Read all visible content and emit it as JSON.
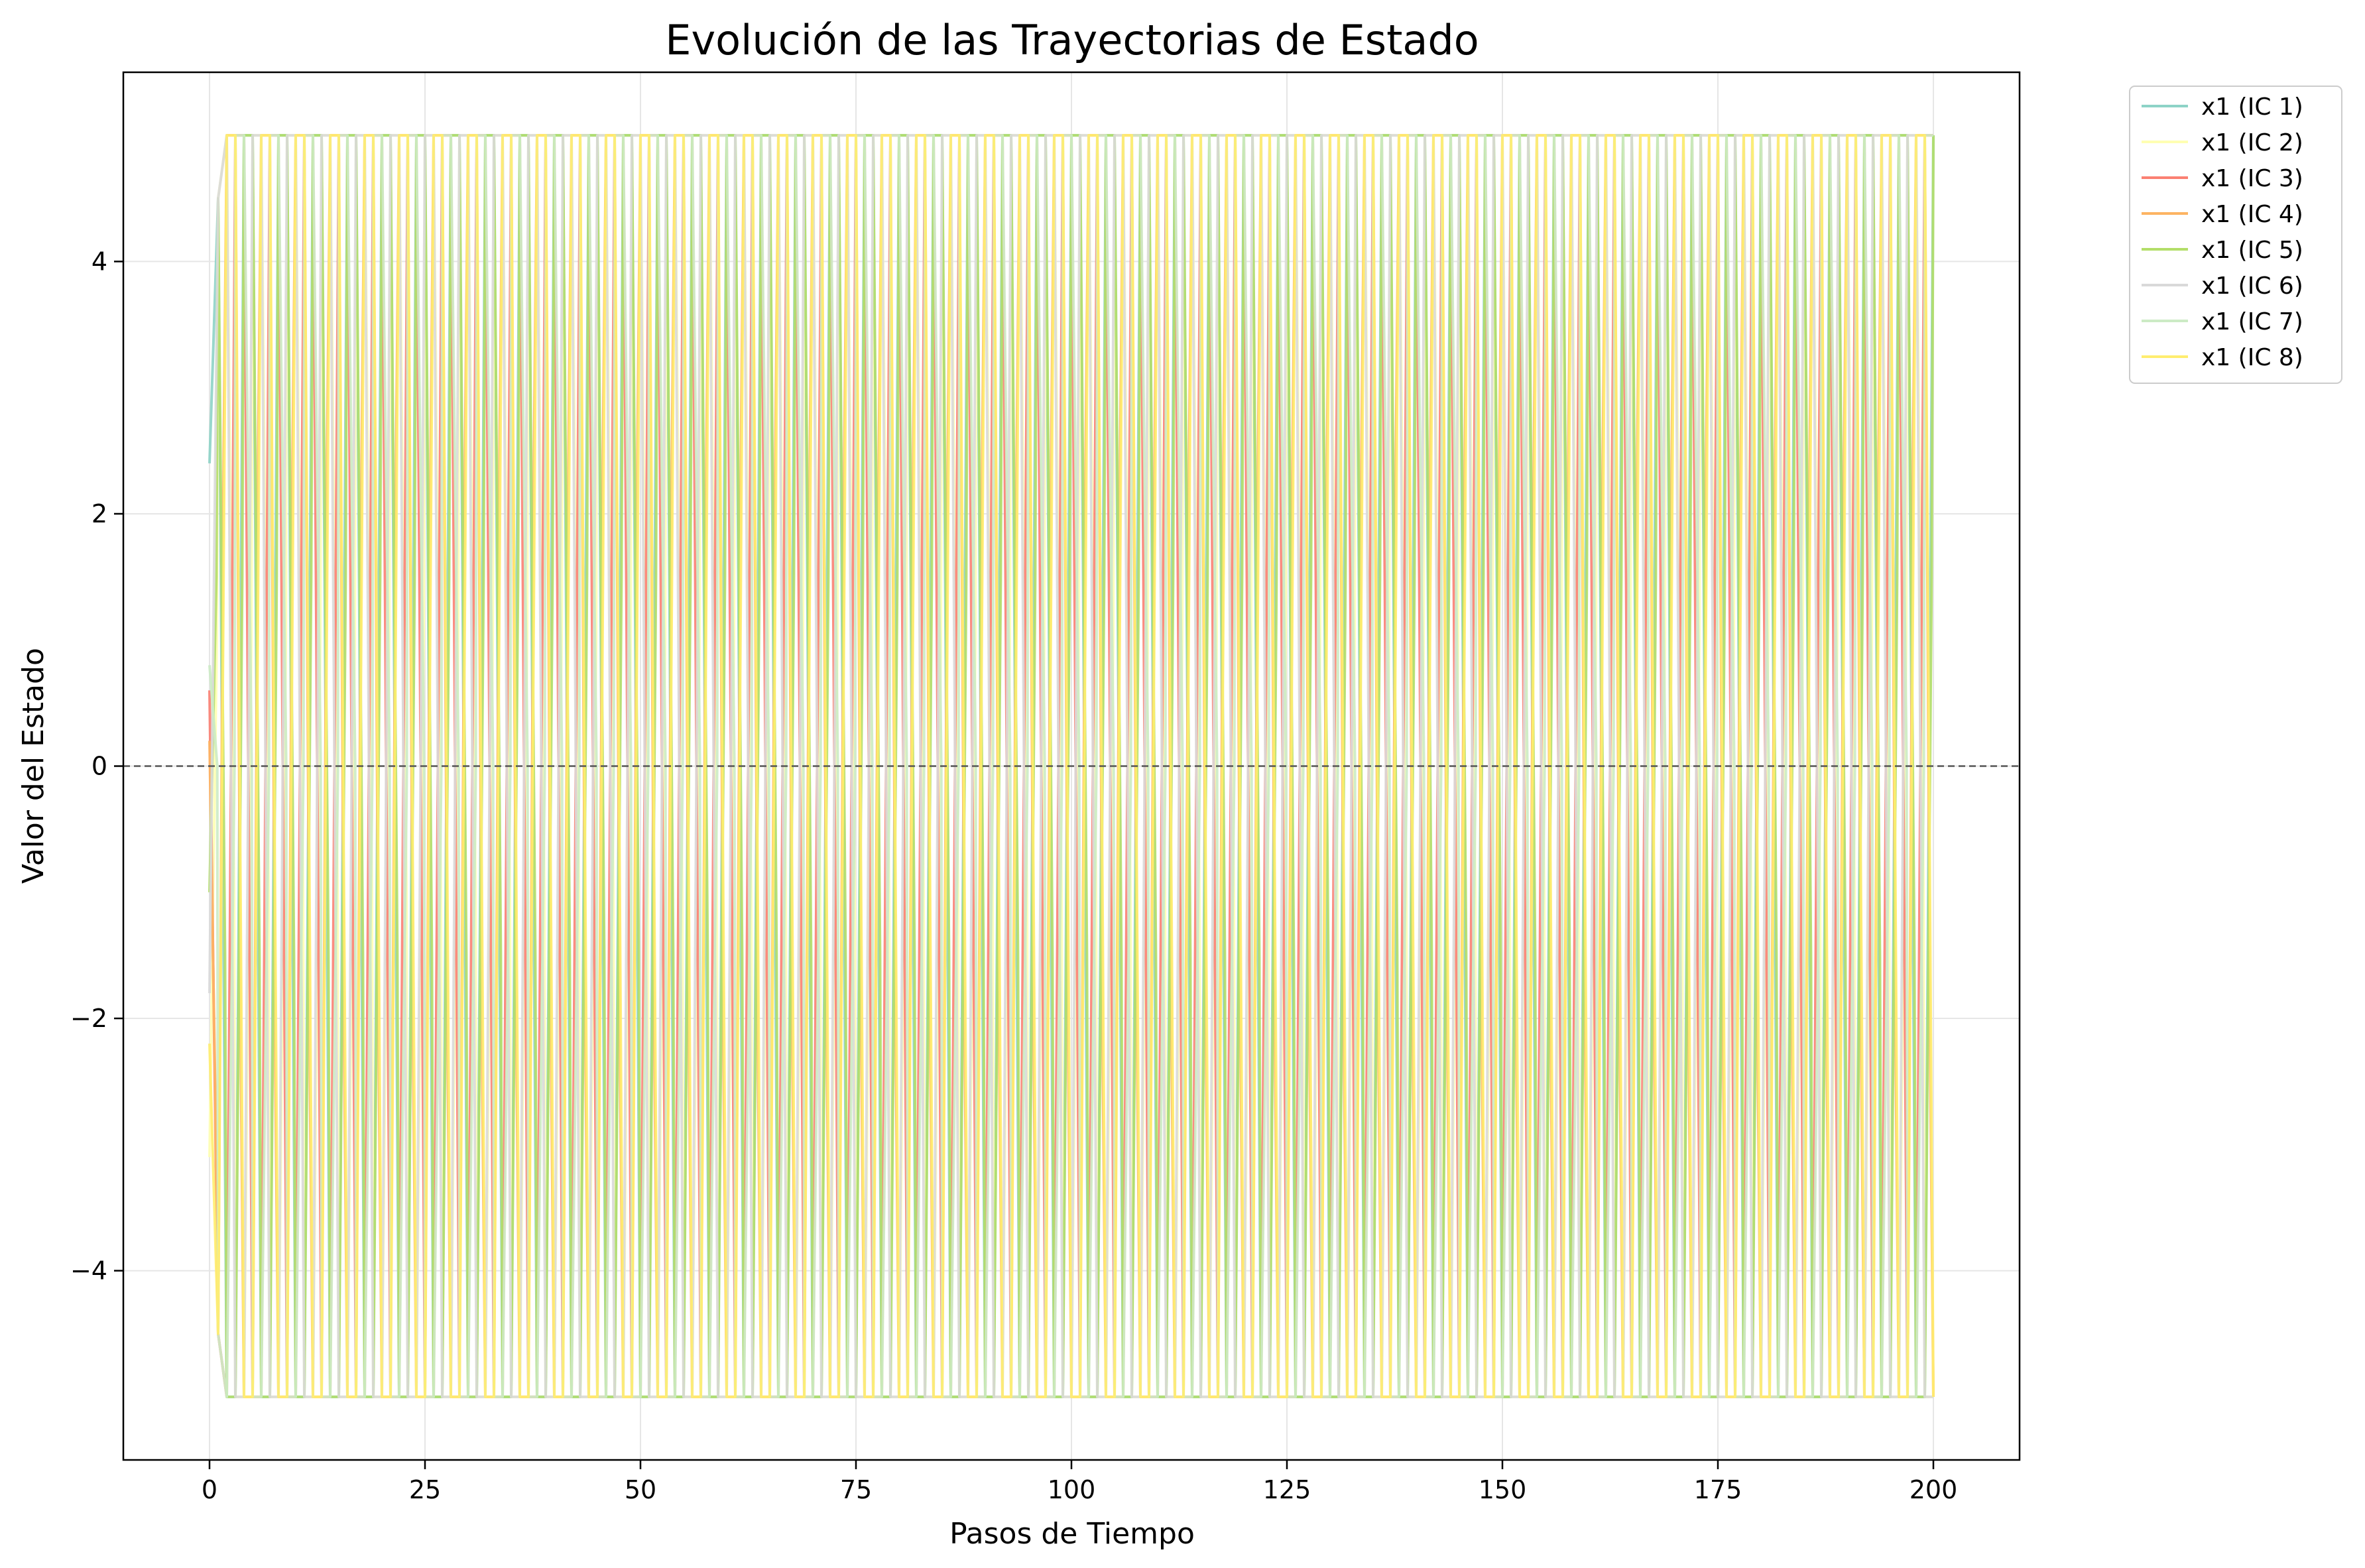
{
  "chart_data": {
    "type": "line",
    "title": "Evolución de las Trayectorias de Estado",
    "xlabel": "Pasos de Tiempo",
    "ylabel": "Valor del Estado",
    "xlim": [
      -10,
      210
    ],
    "ylim": [
      -5.5,
      5.5
    ],
    "xticks": [
      0,
      25,
      50,
      75,
      100,
      125,
      150,
      175,
      200
    ],
    "yticks": [
      -4,
      -2,
      0,
      2,
      4
    ],
    "xtick_labels": [
      "0",
      "25",
      "50",
      "75",
      "100",
      "125",
      "150",
      "175",
      "200"
    ],
    "ytick_labels": [
      "−4",
      "−2",
      "0",
      "2",
      "4"
    ],
    "grid": true,
    "reference_line": {
      "y": 0,
      "style": "dashed",
      "color": "#555555"
    },
    "legend_position": "outside-top-right",
    "x_range": [
      0,
      200
    ],
    "saturation_bounds": [
      -5,
      5
    ],
    "series": [
      {
        "name": "x1 (IC 1)",
        "color": "#8dd3c7",
        "initial_value": 2.4,
        "pattern": "saturated oscillation, period 4"
      },
      {
        "name": "x1 (IC 2)",
        "color": "#ffffb3",
        "initial_value": -3.1,
        "pattern": "saturated oscillation, period 4"
      },
      {
        "name": "x1 (IC 3)",
        "color": "#fb8072",
        "initial_value": 0.6,
        "pattern": "saturated oscillation, period 4"
      },
      {
        "name": "x1 (IC 4)",
        "color": "#fdb462",
        "initial_value": 0.2,
        "pattern": "saturated oscillation, period 4"
      },
      {
        "name": "x1 (IC 5)",
        "color": "#b3de69",
        "initial_value": -1.0,
        "pattern": "saturated oscillation, period 4"
      },
      {
        "name": "x1 (IC 6)",
        "color": "#d9d9d9",
        "initial_value": -1.8,
        "pattern": "saturated oscillation, period 4"
      },
      {
        "name": "x1 (IC 7)",
        "color": "#ccebc5",
        "initial_value": 0.8,
        "pattern": "saturated oscillation, period 4"
      },
      {
        "name": "x1 (IC 8)",
        "color": "#ffed6f",
        "initial_value": -2.2,
        "pattern": "saturated oscillation, period 4"
      }
    ]
  }
}
